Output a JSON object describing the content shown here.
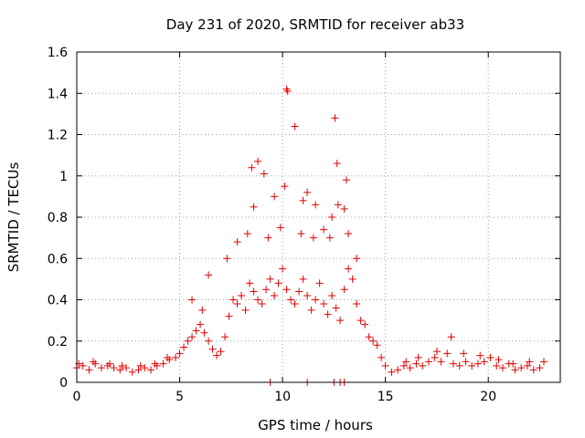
{
  "chart_data": {
    "type": "scatter",
    "title": "Day 231 of 2020, SRMTID for receiver ab33",
    "xlabel": "GPS time / hours",
    "ylabel": "SRMTID / TECUs",
    "xlim": [
      0,
      23.5
    ],
    "ylim": [
      0,
      1.6
    ],
    "xticks": [
      0,
      5,
      10,
      15,
      20
    ],
    "xtick_labels": [
      "0",
      "5",
      "10",
      "15",
      "20"
    ],
    "yticks": [
      0,
      0.2,
      0.4,
      0.6,
      0.8,
      1,
      1.2,
      1.4,
      1.6
    ],
    "ytick_labels": [
      "0",
      "0.2",
      "0.4",
      "0.6",
      "0.8",
      "1",
      "1.2",
      "1.4",
      "1.6"
    ],
    "grid": true,
    "marker": "+",
    "series_color": "#e00000",
    "series": [
      {
        "name": "SRMTID",
        "x": [
          0.0,
          0.3,
          0.6,
          0.9,
          1.2,
          1.5,
          1.8,
          2.1,
          2.4,
          2.7,
          3.0,
          3.3,
          3.6,
          3.9,
          4.2,
          4.5,
          4.8,
          5.0,
          5.2,
          5.4,
          5.6,
          5.8,
          6.0,
          6.2,
          6.4,
          6.6,
          6.8,
          7.0,
          7.2,
          7.4,
          7.6,
          7.8,
          8.0,
          8.2,
          8.4,
          8.6,
          8.8,
          9.0,
          9.2,
          9.4,
          9.6,
          9.8,
          10.0,
          10.2,
          10.4,
          10.6,
          10.8,
          11.0,
          11.2,
          11.4,
          11.6,
          11.8,
          12.0,
          12.2,
          12.4,
          12.6,
          12.8,
          13.0,
          13.2,
          13.4,
          13.6,
          13.8,
          14.0,
          14.2,
          14.4,
          14.6,
          14.8,
          15.0,
          15.3,
          15.6,
          15.9,
          16.2,
          16.5,
          16.8,
          17.1,
          17.4,
          17.7,
          18.0,
          18.3,
          18.6,
          18.9,
          19.2,
          19.5,
          19.8,
          20.1,
          20.4,
          20.7,
          21.0,
          21.3,
          21.6,
          21.9,
          22.2,
          22.5,
          22.7,
          8.5,
          8.8,
          9.1,
          10.2,
          10.25,
          10.6,
          12.55,
          12.65,
          13.1,
          8.6,
          9.6,
          10.1,
          11.0,
          11.2,
          11.6,
          12.4,
          12.7,
          13.0,
          7.3,
          7.8,
          8.3,
          9.3,
          9.9,
          10.9,
          11.5,
          12.0,
          12.3,
          13.2,
          13.6,
          5.6,
          6.1,
          6.4,
          9.4,
          11.2,
          12.5,
          12.8,
          13.0,
          0.1,
          0.8,
          1.6,
          2.2,
          3.1,
          3.8,
          4.4,
          16.0,
          16.6,
          17.5,
          18.2,
          18.8,
          19.6,
          20.5,
          21.2,
          22.0
        ],
        "y": [
          0.07,
          0.08,
          0.06,
          0.09,
          0.07,
          0.08,
          0.07,
          0.06,
          0.07,
          0.05,
          0.06,
          0.07,
          0.06,
          0.08,
          0.09,
          0.11,
          0.12,
          0.14,
          0.17,
          0.2,
          0.22,
          0.25,
          0.28,
          0.24,
          0.2,
          0.16,
          0.13,
          0.15,
          0.22,
          0.32,
          0.4,
          0.38,
          0.42,
          0.35,
          0.48,
          0.44,
          0.4,
          0.38,
          0.45,
          0.5,
          0.42,
          0.48,
          0.55,
          0.45,
          0.4,
          0.38,
          0.44,
          0.5,
          0.42,
          0.35,
          0.4,
          0.48,
          0.38,
          0.33,
          0.42,
          0.36,
          0.3,
          0.45,
          0.55,
          0.5,
          0.38,
          0.3,
          0.28,
          0.22,
          0.2,
          0.18,
          0.12,
          0.08,
          0.05,
          0.06,
          0.08,
          0.07,
          0.09,
          0.08,
          0.1,
          0.12,
          0.1,
          0.14,
          0.09,
          0.08,
          0.1,
          0.08,
          0.09,
          0.1,
          0.12,
          0.08,
          0.07,
          0.09,
          0.06,
          0.07,
          0.08,
          0.06,
          0.07,
          0.1,
          1.04,
          1.07,
          1.01,
          1.42,
          1.41,
          1.24,
          1.28,
          1.06,
          0.98,
          0.85,
          0.9,
          0.95,
          0.88,
          0.92,
          0.86,
          0.8,
          0.86,
          0.84,
          0.6,
          0.68,
          0.72,
          0.7,
          0.75,
          0.72,
          0.7,
          0.74,
          0.7,
          0.72,
          0.6,
          0.4,
          0.35,
          0.52,
          0.0,
          0.0,
          0.0,
          0.0,
          0.0,
          0.09,
          0.1,
          0.09,
          0.08,
          0.08,
          0.09,
          0.12,
          0.1,
          0.12,
          0.15,
          0.22,
          0.14,
          0.13,
          0.11,
          0.09,
          0.1
        ]
      }
    ]
  }
}
